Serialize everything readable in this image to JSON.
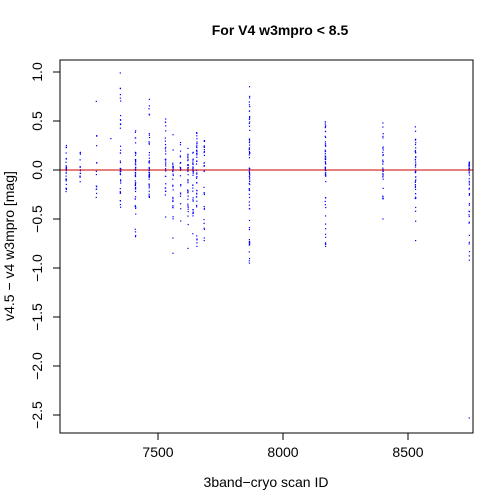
{
  "chart_data": {
    "type": "scatter",
    "title": "For V4 w3mpro < 8.5",
    "xlabel": "3band−cryo scan ID",
    "ylabel": "v4.5 − v4 w3mpro [mag]",
    "xlim": [
      8100,
      8800
    ],
    "ylim": [
      -2.6,
      1.1
    ],
    "xticks": [
      7500,
      8000,
      8500
    ],
    "xtick_labels": [
      "7500",
      "8000",
      "8500"
    ],
    "yticks": [
      1.0,
      0.5,
      0.0,
      -0.5,
      -1.0,
      -1.5,
      -2.0,
      -2.5
    ],
    "ytick_labels": [
      "1.0",
      "0.5",
      "0.0",
      "−0.5",
      "−1.0",
      "−1.5",
      "−2.0",
      "−2.5"
    ],
    "grid": false,
    "point_color": "#0000ff",
    "reference_line": {
      "y": 0,
      "color": "#cc0000"
    },
    "column_groups": [
      {
        "x": 7133,
        "ymin": -0.22,
        "ymax": 0.25,
        "n": 28
      },
      {
        "x": 7189,
        "ymin": -0.12,
        "ymax": 0.18,
        "n": 14
      },
      {
        "x": 7254,
        "ymin": -0.28,
        "ymax": 0.7,
        "n": 14
      },
      {
        "x": 7312,
        "ymin": 0.32,
        "ymax": 0.32,
        "n": 1
      },
      {
        "x": 7350,
        "ymin": -0.38,
        "ymax": 0.99,
        "n": 40
      },
      {
        "x": 7410,
        "ymin": -0.68,
        "ymax": 0.4,
        "n": 50
      },
      {
        "x": 7465,
        "ymin": -0.28,
        "ymax": 0.72,
        "n": 45
      },
      {
        "x": 7530,
        "ymin": -0.48,
        "ymax": 0.52,
        "n": 32
      },
      {
        "x": 7560,
        "ymin": -0.85,
        "ymax": 0.36,
        "n": 30
      },
      {
        "x": 7590,
        "ymin": -0.52,
        "ymax": 0.28,
        "n": 22
      },
      {
        "x": 7620,
        "ymin": -0.8,
        "ymax": 0.22,
        "n": 36
      },
      {
        "x": 7640,
        "ymin": -0.65,
        "ymax": 0.18,
        "n": 30
      },
      {
        "x": 7655,
        "ymin": -0.78,
        "ymax": 0.38,
        "n": 44
      },
      {
        "x": 7685,
        "ymin": -0.72,
        "ymax": 0.3,
        "n": 30
      },
      {
        "x": 7866,
        "ymin": -0.95,
        "ymax": 0.85,
        "n": 70
      },
      {
        "x": 8170,
        "ymin": -0.78,
        "ymax": 0.49,
        "n": 60
      },
      {
        "x": 8400,
        "ymin": -0.5,
        "ymax": 0.48,
        "n": 30
      },
      {
        "x": 8530,
        "ymin": -0.72,
        "ymax": 0.44,
        "n": 45
      },
      {
        "x": 8745,
        "ymin": -0.92,
        "ymax": 0.08,
        "n": 50
      }
    ],
    "outliers": [
      {
        "x": 8745,
        "y": -2.53
      }
    ]
  }
}
